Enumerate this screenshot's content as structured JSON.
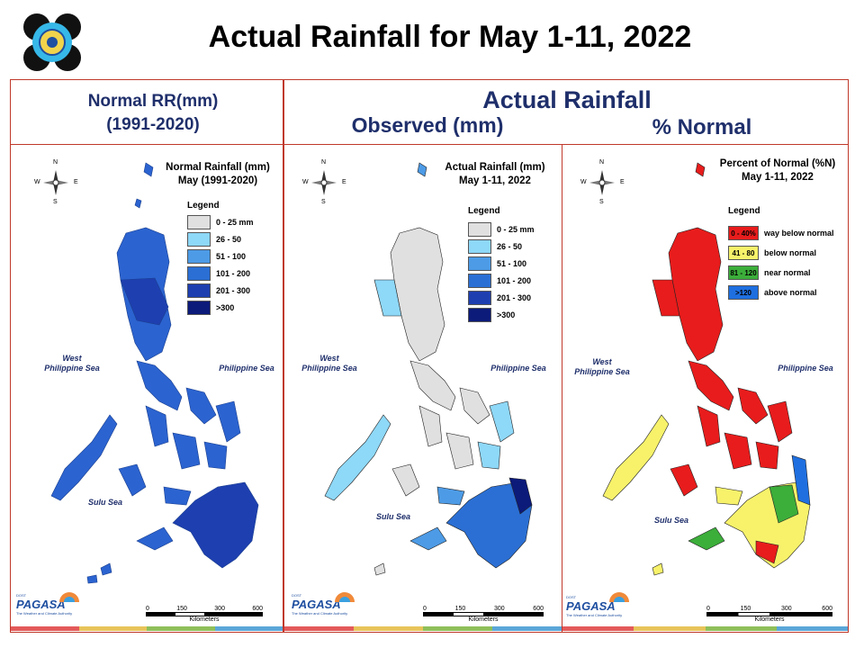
{
  "title": "Actual Rainfall for May 1-11, 2022",
  "headers": {
    "normal_line1": "Normal RR(mm)",
    "normal_line2": "(1991-2020)",
    "actual": "Actual Rainfall",
    "observed": "Observed (mm)",
    "percent": "% Normal"
  },
  "panels": [
    {
      "title_line1": "Normal Rainfall (mm)",
      "title_line2": "May (1991-2020)",
      "legend_title": "Legend",
      "legend": [
        {
          "label": "0 - 25 mm",
          "color": "#e0e0e0"
        },
        {
          "label": "26 - 50",
          "color": "#8ed8f8"
        },
        {
          "label": "51 - 100",
          "color": "#4d9be6"
        },
        {
          "label": "101 - 200",
          "color": "#2b6fd4"
        },
        {
          "label": "201 - 300",
          "color": "#1e3fb0"
        },
        {
          "label": ">300",
          "color": "#0c1a7a"
        }
      ]
    },
    {
      "title_line1": "Actual Rainfall (mm)",
      "title_line2": "May 1-11, 2022",
      "legend_title": "Legend",
      "legend": [
        {
          "label": "0 - 25 mm",
          "color": "#e0e0e0"
        },
        {
          "label": "26 - 50",
          "color": "#8ed8f8"
        },
        {
          "label": "51 - 100",
          "color": "#4d9be6"
        },
        {
          "label": "101 - 200",
          "color": "#2b6fd4"
        },
        {
          "label": "201 - 300",
          "color": "#1e3fb0"
        },
        {
          "label": ">300",
          "color": "#0c1a7a"
        }
      ]
    },
    {
      "title_line1": "Percent of Normal (%N)",
      "title_line2": "May 1-11, 2022",
      "legend_title": "Legend",
      "legend": [
        {
          "swatch": "0 - 40%",
          "label": "way below normal",
          "color": "#e81c1c"
        },
        {
          "swatch": "41 - 80",
          "label": "below normal",
          "color": "#f7f26a"
        },
        {
          "swatch": "81 - 120",
          "label": "near normal",
          "color": "#3cae3a"
        },
        {
          "swatch": ">120",
          "label": "above normal",
          "color": "#1f6fe0"
        }
      ]
    }
  ],
  "seas": {
    "west_line1": "West",
    "west_line2": "Philippine Sea",
    "philippine": "Philippine Sea",
    "sulu": "Sulu Sea"
  },
  "compass": {
    "n": "N",
    "s": "S",
    "e": "E",
    "w": "W"
  },
  "scale": {
    "ticks": [
      "0",
      "150",
      "300",
      "600"
    ],
    "unit": "Kilometers"
  },
  "branding": {
    "dost": "DOST",
    "payong": "PAYONG",
    "name": "PAGASA",
    "tagline": "The Weather and Climate Authority"
  },
  "colors": {
    "frame": "#c0392b",
    "heading": "#1f2f6b",
    "map_normal": "#2b63d0",
    "map_normal_dark": "#1e3fb0",
    "map_actual_dry": "#e0e0e0",
    "map_actual_wet": "#2b6fd4",
    "map_pct": "#e81c1c",
    "map_pct_yellow": "#f7f26a",
    "stripe": [
      "#e35a5a",
      "#e8c45a",
      "#8fbf5a",
      "#5aa7d8"
    ]
  }
}
